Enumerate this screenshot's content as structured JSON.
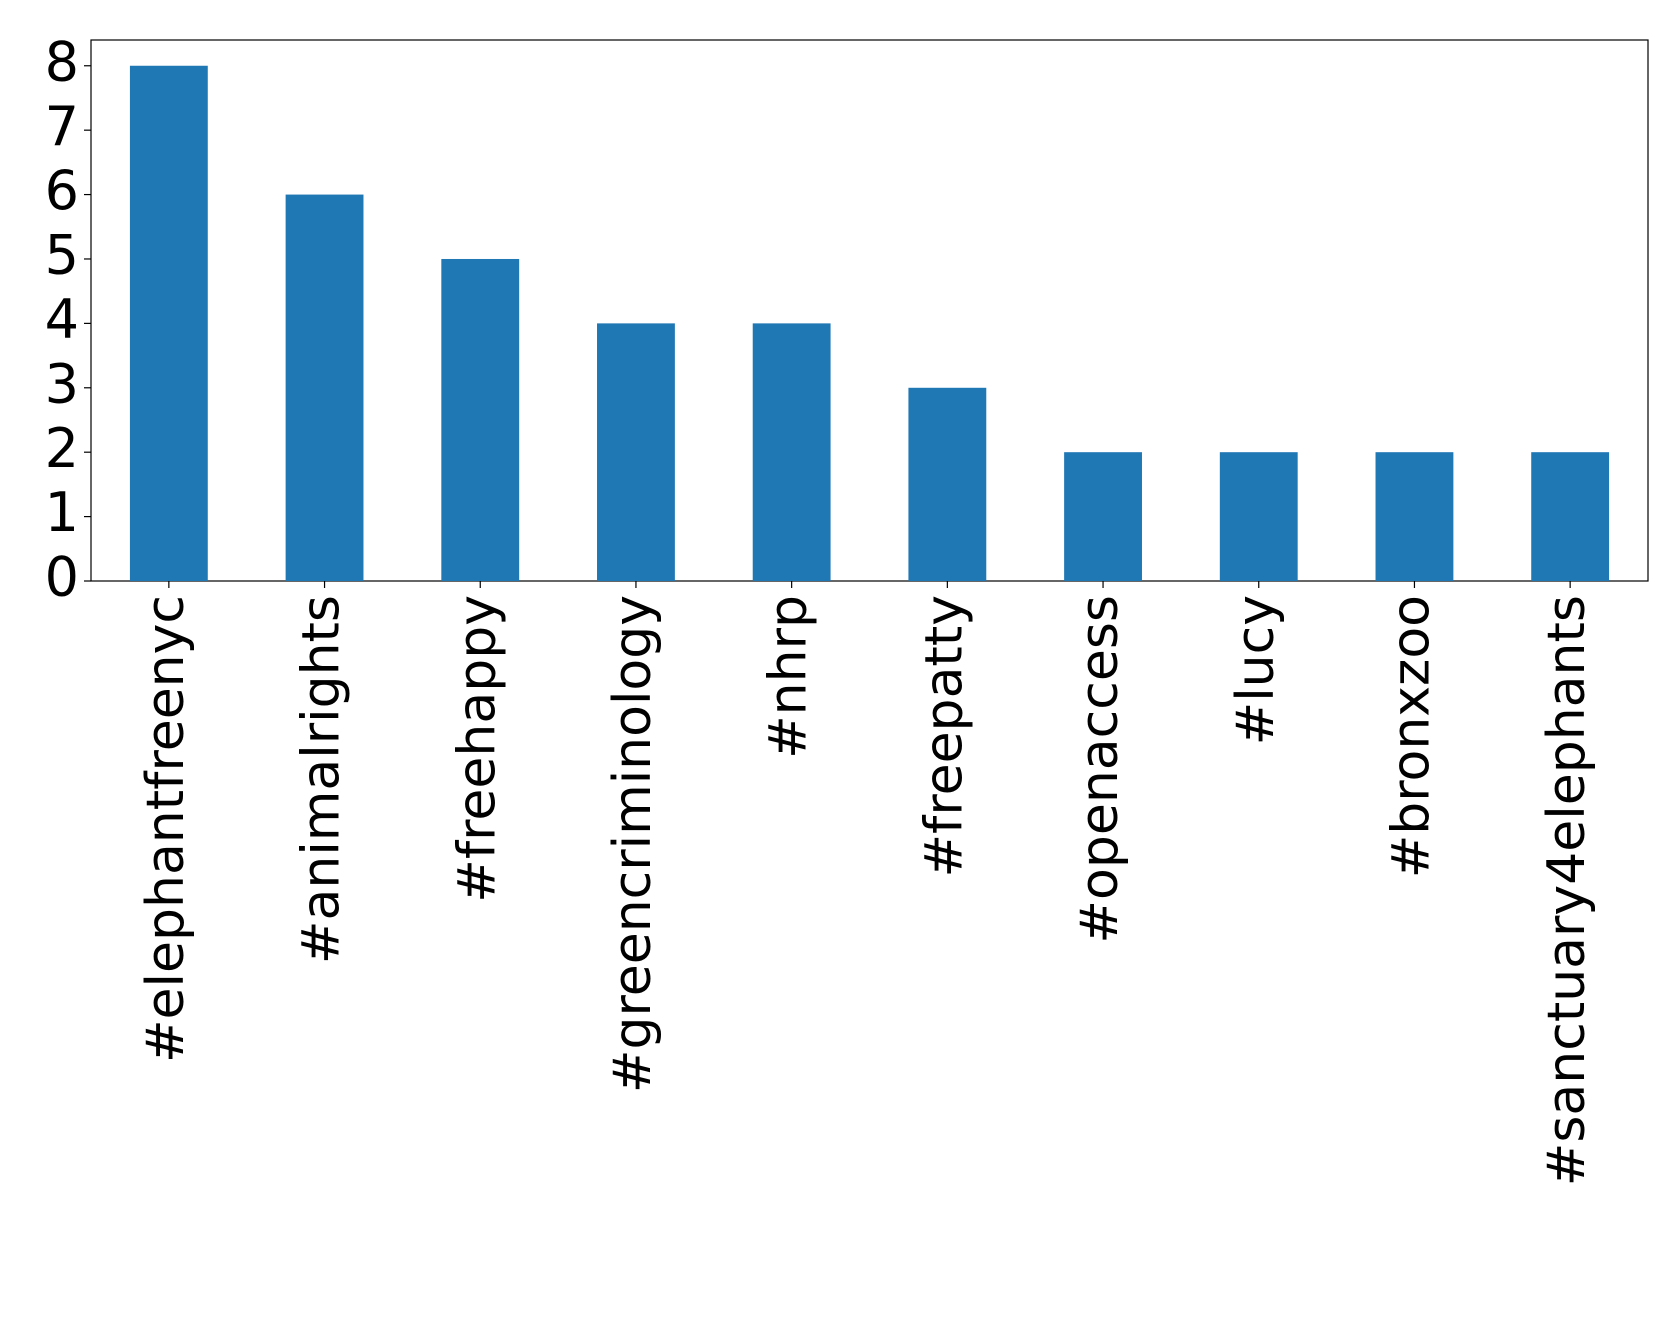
{
  "chart_data": {
    "type": "bar",
    "categories": [
      "#elephantfreenyc",
      "#animalrights",
      "#freehappy",
      "#greencriminology",
      "#nhrp",
      "#freepatty",
      "#openaccess",
      "#lucy",
      "#bronxzoo",
      "#sanctuary4elephants"
    ],
    "values": [
      8,
      6,
      5,
      4,
      4,
      3,
      2,
      2,
      2,
      2
    ],
    "color": "#1f77b4",
    "ylim": [
      0,
      8.4
    ],
    "yticks": [
      0,
      1,
      2,
      3,
      4,
      5,
      6,
      7,
      8
    ],
    "grid": false
  }
}
